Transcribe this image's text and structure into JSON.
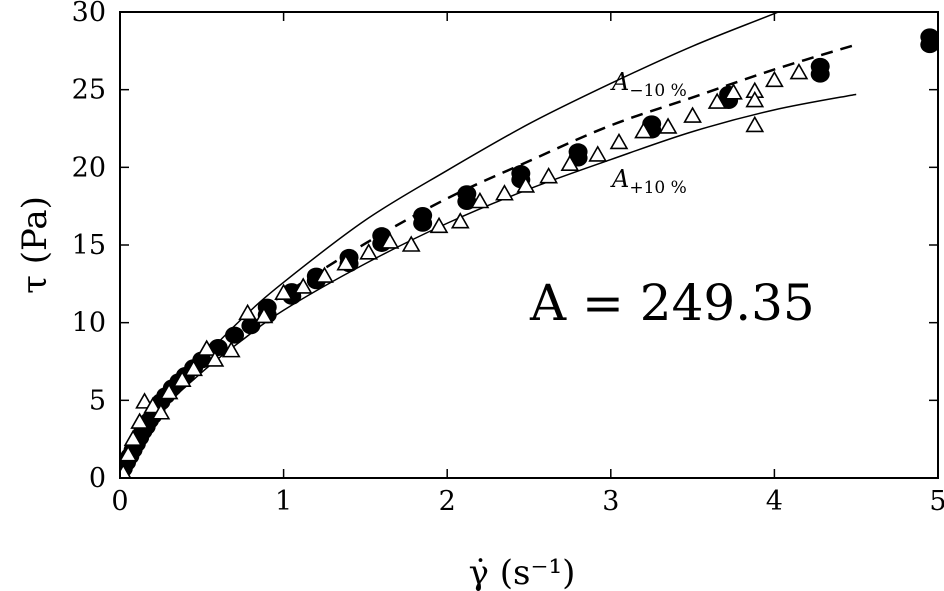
{
  "chart_data": {
    "type": "scatter",
    "title": "",
    "xlabel": "γ̇ (s⁻¹)",
    "ylabel": "τ (Pa)",
    "xlim": [
      0,
      5
    ],
    "ylim": [
      0,
      30
    ],
    "xticks": [
      "0",
      "1",
      "2",
      "3",
      "4",
      "5"
    ],
    "yticks": [
      "0",
      "5",
      "10",
      "15",
      "20",
      "25",
      "30"
    ],
    "grid": false,
    "legend": "none",
    "annotations": {
      "main": "A = 249.35",
      "upper_curve_label": {
        "base": "A",
        "sub": "−10 %"
      },
      "lower_curve_label": {
        "base": "A",
        "sub": "+10 %"
      }
    },
    "series": [
      {
        "marker": "filled-circle",
        "x": [
          0.02,
          0.04,
          0.06,
          0.08,
          0.1,
          0.12,
          0.14,
          0.16,
          0.18,
          0.2,
          0.22,
          0.25,
          0.28,
          0.32,
          0.36,
          0.4,
          0.45,
          0.5,
          0.6,
          0.7,
          0.8,
          0.9,
          0.9,
          1.05,
          1.05,
          1.2,
          1.2,
          1.4,
          1.4,
          1.6,
          1.6,
          1.85,
          1.85,
          2.12,
          2.12,
          2.45,
          2.45,
          2.8,
          2.8,
          3.25,
          3.25,
          3.72,
          3.72,
          4.28,
          4.28,
          4.95,
          4.95
        ],
        "y": [
          0.6,
          1.0,
          1.4,
          1.8,
          2.2,
          2.6,
          3.0,
          3.3,
          3.7,
          4.0,
          4.4,
          4.9,
          5.3,
          5.8,
          6.2,
          6.6,
          7.1,
          7.6,
          8.4,
          9.2,
          9.8,
          10.5,
          11.0,
          11.7,
          12.0,
          12.7,
          13.0,
          13.8,
          14.2,
          15.1,
          15.6,
          16.4,
          16.9,
          17.8,
          18.3,
          19.2,
          19.6,
          20.6,
          21.0,
          22.4,
          22.8,
          24.3,
          24.7,
          26.0,
          26.5,
          27.9,
          28.4
        ]
      },
      {
        "marker": "open-triangle",
        "x": [
          0.02,
          0.05,
          0.08,
          0.12,
          0.15,
          0.2,
          0.25,
          0.3,
          0.38,
          0.45,
          0.53,
          0.58,
          0.68,
          0.78,
          0.88,
          1.0,
          1.12,
          1.25,
          1.38,
          1.52,
          1.65,
          1.78,
          1.95,
          2.08,
          2.2,
          2.35,
          2.48,
          2.62,
          2.75,
          2.92,
          3.05,
          3.2,
          3.35,
          3.5,
          3.65,
          3.75,
          3.88,
          3.88,
          3.88,
          4.0,
          4.15
        ],
        "y": [
          0.3,
          1.5,
          2.5,
          3.6,
          4.9,
          4.6,
          4.2,
          5.5,
          6.3,
          7.0,
          8.3,
          7.6,
          8.2,
          10.6,
          10.4,
          11.9,
          12.3,
          13.0,
          13.8,
          14.5,
          15.2,
          15.0,
          16.2,
          16.5,
          17.8,
          18.3,
          18.8,
          19.4,
          20.2,
          20.8,
          21.6,
          22.3,
          22.6,
          23.3,
          24.2,
          24.8,
          24.9,
          24.3,
          22.7,
          25.6,
          26.1
        ]
      },
      {
        "style": "dashed-line",
        "name": "",
        "x": [
          0,
          0.25,
          0.5,
          0.75,
          1.0,
          1.5,
          2.0,
          2.5,
          3.0,
          3.5,
          4.0,
          4.5
        ],
        "y": [
          0,
          4.5,
          7.6,
          9.9,
          11.8,
          15.1,
          18.0,
          20.4,
          22.7,
          24.5,
          26.3,
          27.9
        ]
      },
      {
        "style": "solid-line",
        "name": "",
        "x": [
          0,
          0.25,
          0.5,
          0.75,
          1.0,
          1.5,
          2.0,
          2.5,
          3.0,
          3.5,
          4.0,
          4.5
        ],
        "y": [
          0,
          4.5,
          7.6,
          10.3,
          12.6,
          16.6,
          19.8,
          22.8,
          25.4,
          27.8,
          29.9,
          32.0
        ]
      },
      {
        "style": "solid-line",
        "name": "",
        "x": [
          0,
          0.25,
          0.5,
          0.75,
          1.0,
          1.5,
          2.0,
          2.5,
          3.0,
          3.5,
          4.0,
          4.5
        ],
        "y": [
          0,
          4.2,
          6.8,
          8.9,
          10.8,
          13.8,
          16.4,
          18.6,
          20.5,
          22.3,
          23.7,
          24.7
        ]
      }
    ]
  }
}
